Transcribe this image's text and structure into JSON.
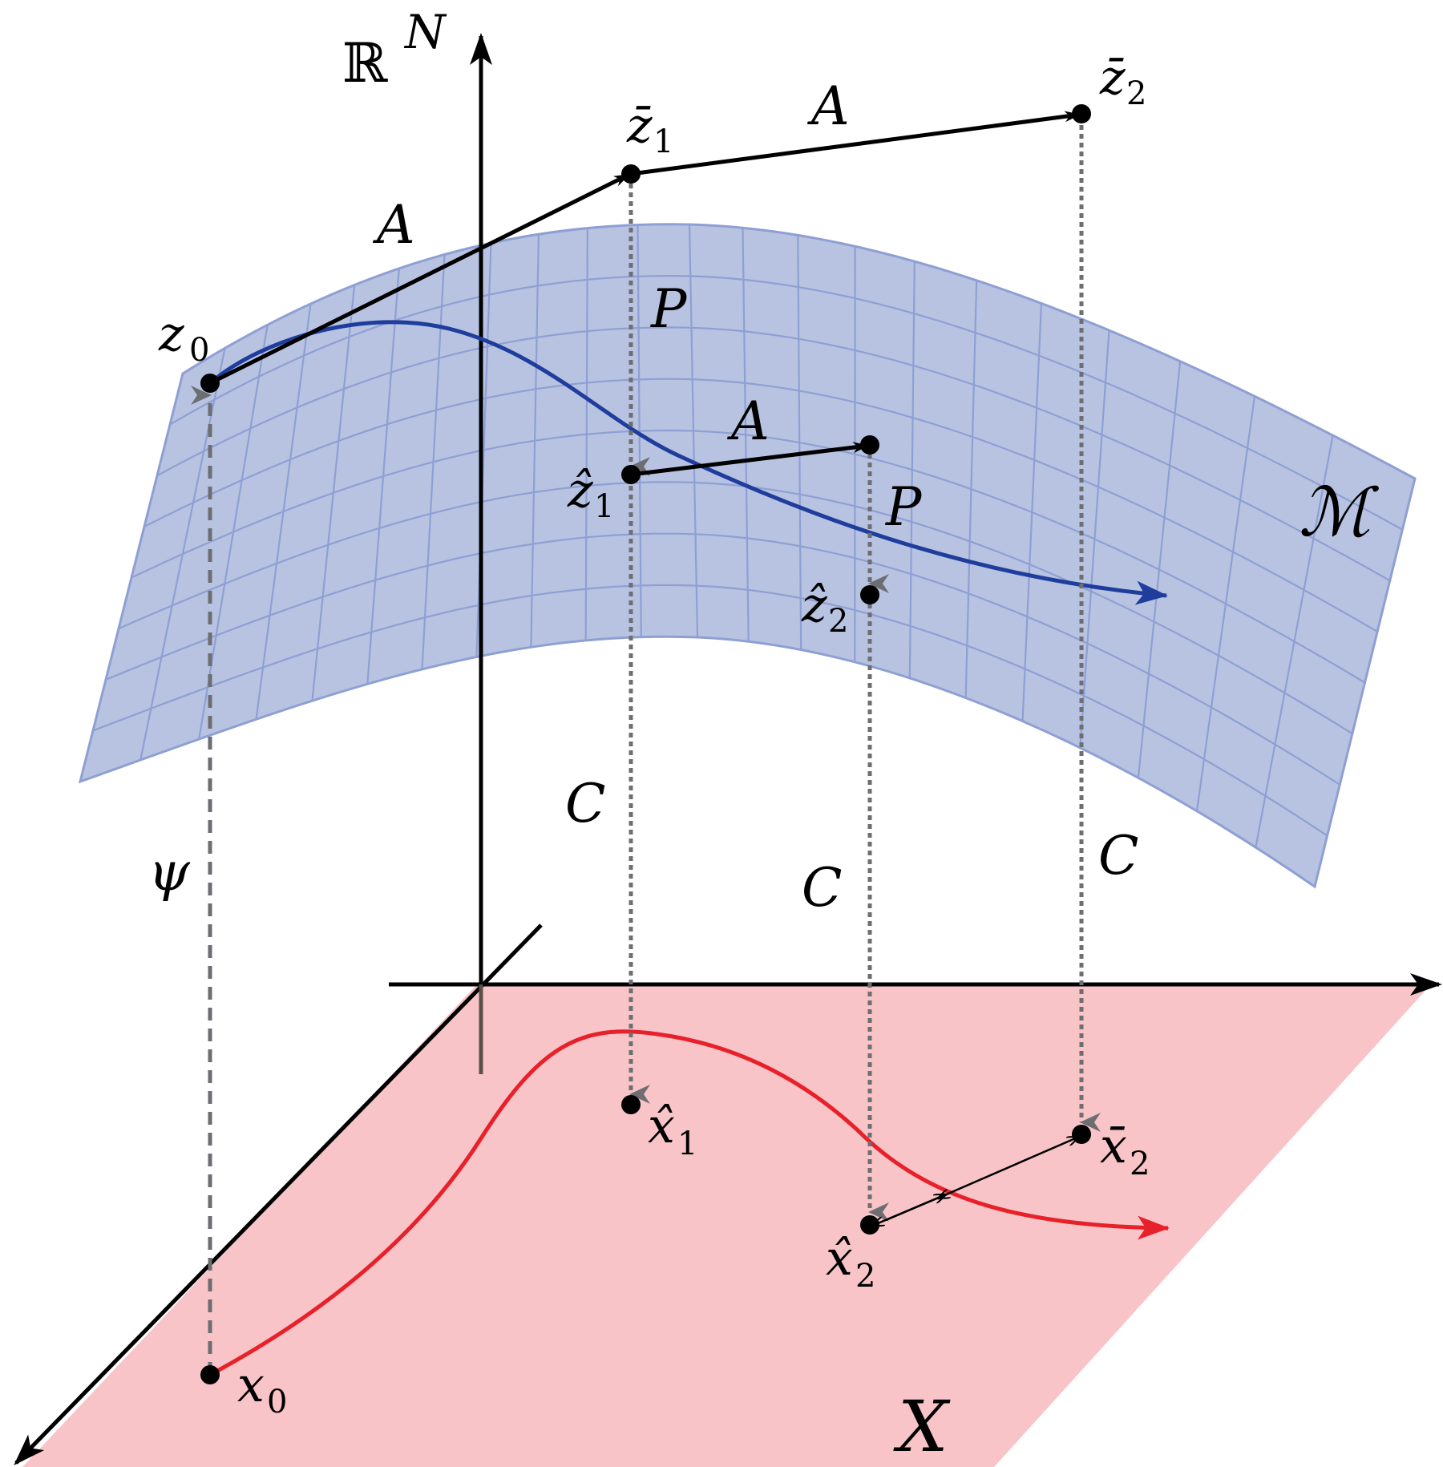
{
  "labels": {
    "space": "ℝ",
    "space_sup": "N",
    "manifold": "ℳ",
    "plane": "X",
    "psi": "ψ",
    "z0": "z",
    "z0_sub": "0",
    "zbar1": "z̄",
    "zbar1_sub": "1",
    "zbar2": "z̄",
    "zbar2_sub": "2",
    "zhat1": "ẑ",
    "zhat1_sub": "1",
    "zhat2": "ẑ",
    "zhat2_sub": "2",
    "x0": "x",
    "x0_sub": "0",
    "xhat1": "x̂",
    "xhat1_sub": "1",
    "xhat2": "x̂",
    "xhat2_sub": "2",
    "xbar2": "x̄",
    "xbar2_sub": "2",
    "A1": "A",
    "A2": "A",
    "A3": "A",
    "P1": "P",
    "P2": "P",
    "C1": "C",
    "C2": "C",
    "C3": "C"
  },
  "colors": {
    "manifold_fill": "#b8c3e2",
    "manifold_grid": "#8e9fd3",
    "manifold_curve": "#1f3d9c",
    "plane_fill": "#f8c4c7",
    "plane_curve": "#e8202a",
    "projection": "#6d6e71",
    "axes": "#000000"
  }
}
